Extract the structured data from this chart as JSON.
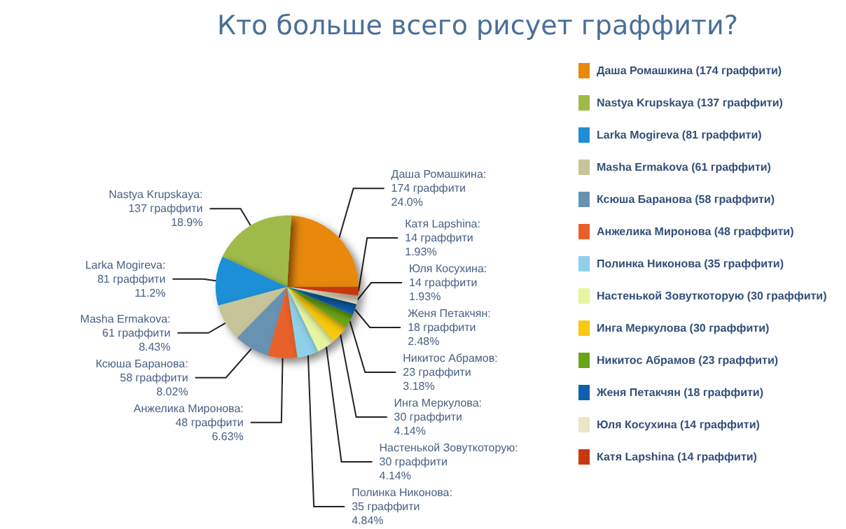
{
  "chart_data": {
    "type": "pie",
    "title": "Кто больше всего рисует граффити?",
    "categories": [
      "Даша Ромашкина (174 граффити)",
      "Nastya Krupskaya (137 граффити)",
      "Larka Mogireva (81 граффити)",
      "Masha Ermakova (61 граффити)",
      "Ксюша Баранова (58 граффити)",
      "Анжелика Миронова (48 граффити)",
      "Полинка Никонова (35 граффити)",
      "Настенькой Зовуткоторую (30 граффити)",
      "Инга Меркулова (30 граффити)",
      "Никитос Абрамов (23 граффити)",
      "Женя Петакчян (18 граффити)",
      "Юля Косухина (14 граффити)",
      "Катя Lapshina (14 граффити)"
    ],
    "values": [
      174,
      137,
      81,
      61,
      58,
      48,
      35,
      30,
      30,
      23,
      18,
      14,
      14
    ],
    "value_labels": [
      "Даша Ромашкина:\n174 граффити\n24.0%",
      "Nastya Krupskaya:\n137 граффити\n18.9%",
      "Larka Mogireva:\n81 граффити\n11.2%",
      "Masha Ermakova:\n61 граффити\n8.43%",
      "Ксюша Баранова:\n58 граффити\n8.02%",
      "Анжелика Миронова:\n48 граффити\n6.63%",
      "Полинка Никонова:\n35 граффити\n4.84%",
      "Настенькой Зовуткоторую:\n30 граффити\n4.14%",
      "Инга Меркулова:\n30 граффити\n4.14%",
      "Никитос Абрамов:\n23 граффити\n3.18%",
      "Женя Петакчян:\n18 граффити\n2.48%",
      "Юля Косухина:\n14 граффити\n1.93%",
      "Катя Lapshina:\n14 граффити\n1.93%"
    ],
    "colors": [
      "#e8890c",
      "#9fba48",
      "#1e8fd6",
      "#c8c49a",
      "#6893b0",
      "#e8602a",
      "#8dd0e8",
      "#e6f5a0",
      "#f8c80e",
      "#6aa518",
      "#1060b0",
      "#ece6c8",
      "#c8380e"
    ],
    "legend": "right"
  }
}
